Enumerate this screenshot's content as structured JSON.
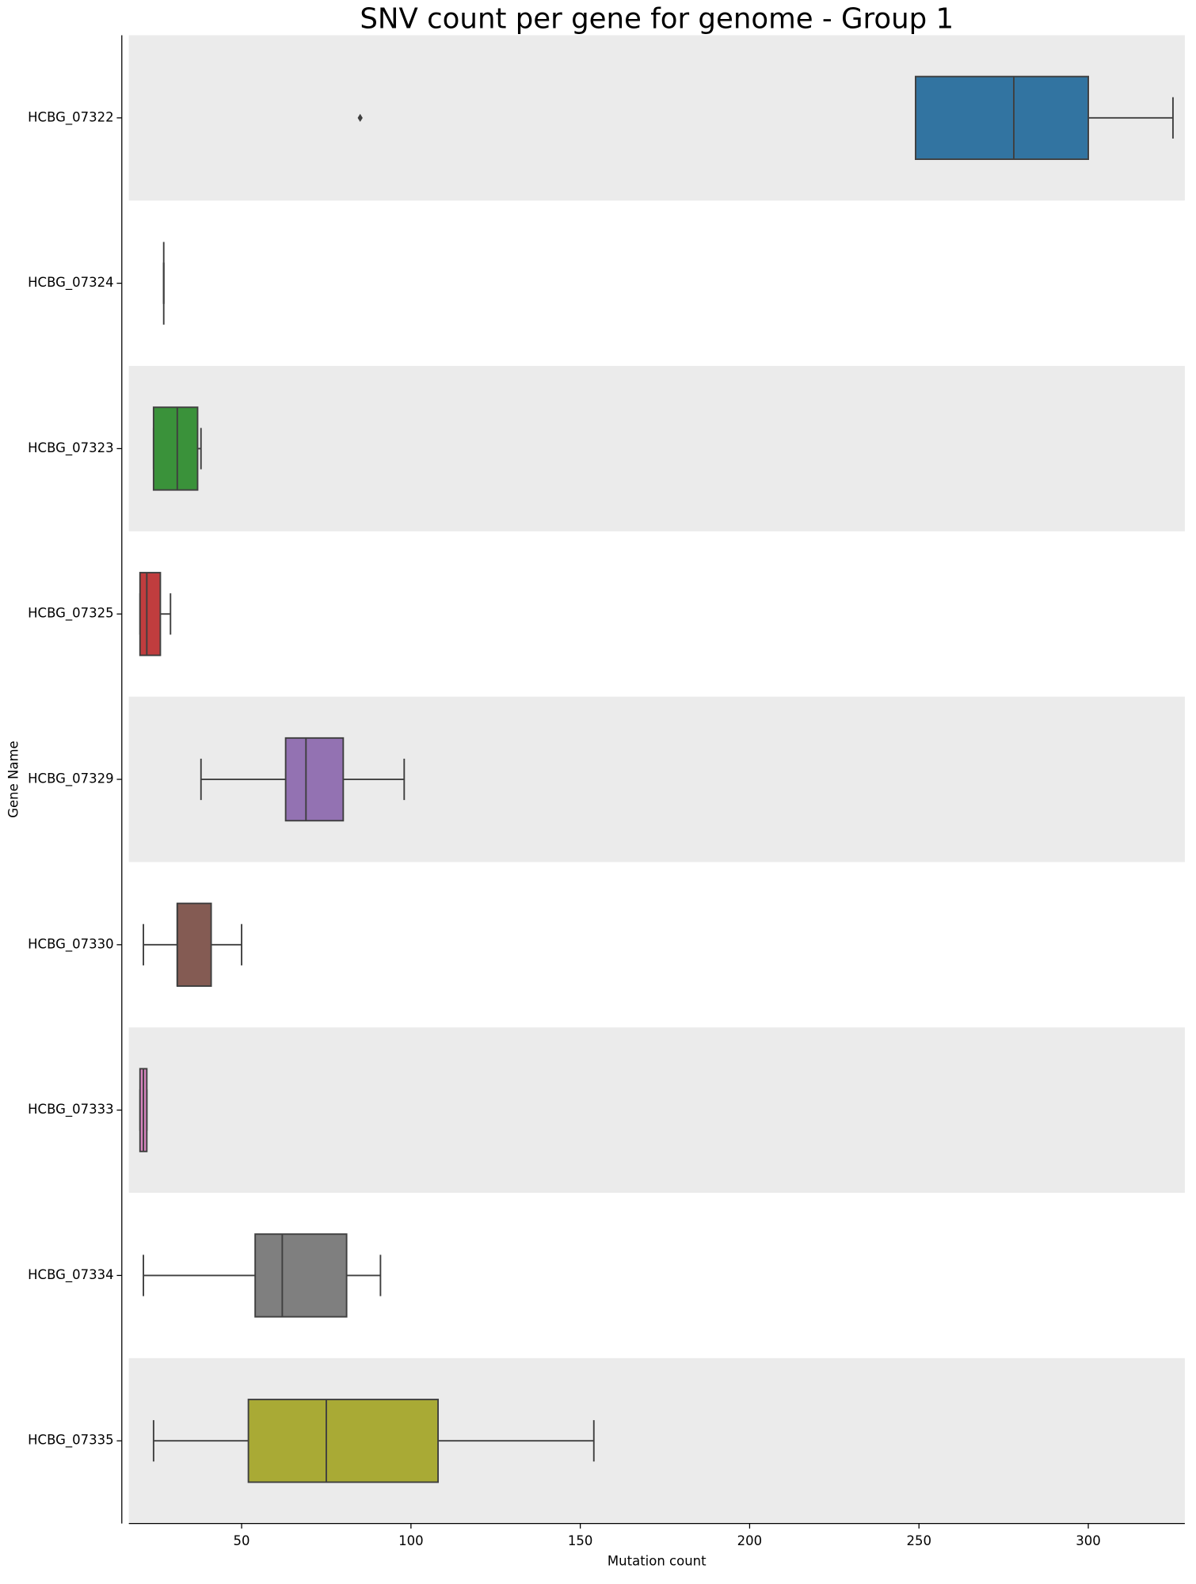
{
  "chart_data": {
    "type": "box",
    "title": "SNV count per gene for genome - Group 1",
    "xlabel": "Mutation count",
    "ylabel": "Gene Name",
    "categories": [
      "HCBG_07322",
      "HCBG_07324",
      "HCBG_07323",
      "HCBG_07325",
      "HCBG_07329",
      "HCBG_07330",
      "HCBG_07333",
      "HCBG_07334",
      "HCBG_07335"
    ],
    "colors": [
      "#3274a1",
      "#e1812c",
      "#3a923a",
      "#c03d3e",
      "#9372b2",
      "#845b53",
      "#d684bd",
      "#7f7f7f",
      "#a9aa35"
    ],
    "boxes": [
      {
        "min": 249,
        "q1": 249,
        "median": 278,
        "q3": 300,
        "max": 325,
        "outliers": [
          85
        ]
      },
      {
        "min": 27,
        "q1": 27,
        "median": 27,
        "q3": 27,
        "max": 27,
        "outliers": []
      },
      {
        "min": 24,
        "q1": 24,
        "median": 31,
        "q3": 37,
        "max": 38,
        "outliers": []
      },
      {
        "min": 20,
        "q1": 20,
        "median": 22,
        "q3": 26,
        "max": 29,
        "outliers": []
      },
      {
        "min": 38,
        "q1": 63,
        "median": 69,
        "q3": 80,
        "max": 98,
        "outliers": []
      },
      {
        "min": 21,
        "q1": 31,
        "median": 31,
        "q3": 41,
        "max": 50,
        "outliers": []
      },
      {
        "min": 20,
        "q1": 20,
        "median": 21,
        "q3": 22,
        "max": 22,
        "outliers": []
      },
      {
        "min": 21,
        "q1": 54,
        "median": 62,
        "q3": 81,
        "max": 91,
        "outliers": []
      },
      {
        "min": 24,
        "q1": 52,
        "median": 75,
        "q3": 108,
        "max": 154,
        "outliers": []
      }
    ],
    "xlim": [
      16.7,
      328.5
    ],
    "xticks": [
      50,
      100,
      150,
      200,
      250,
      300
    ],
    "band_shading": true
  }
}
